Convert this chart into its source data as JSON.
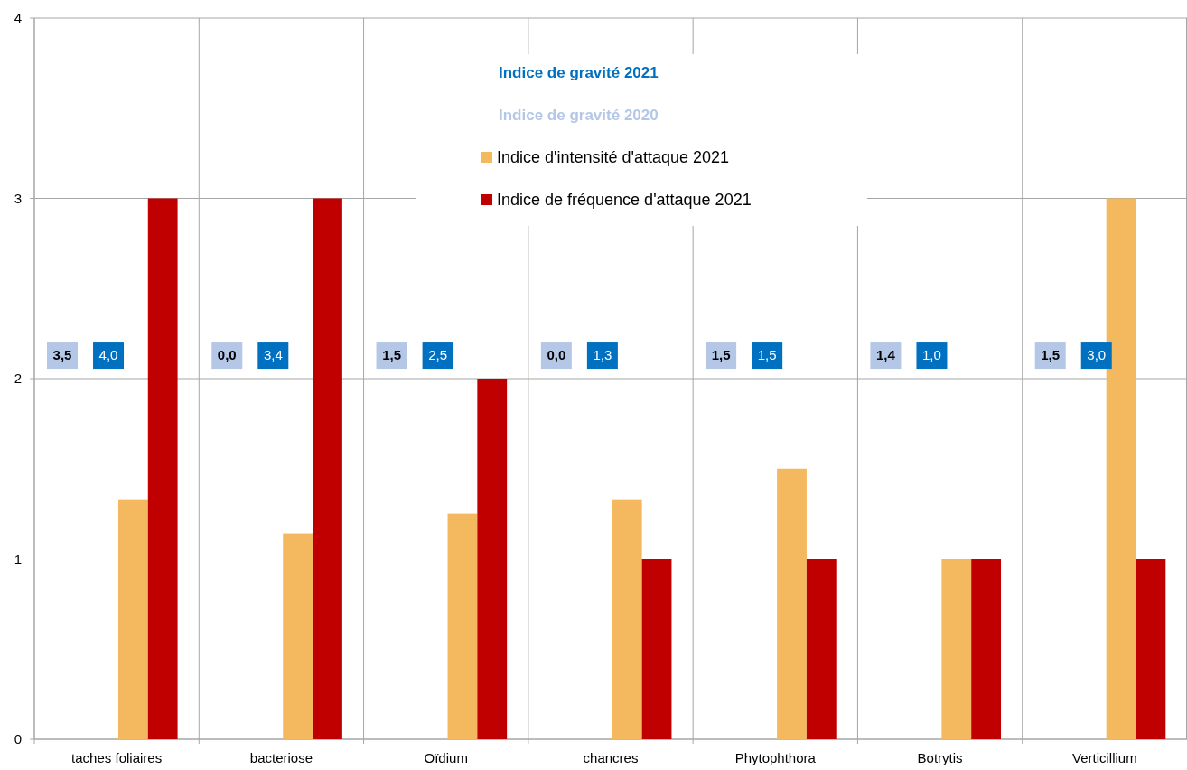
{
  "chart_data": {
    "type": "bar",
    "categories": [
      "taches foliaires",
      "bacteriose",
      "Oïdium",
      "chancres",
      "Phytophthora",
      "Botrytis",
      "Verticillium"
    ],
    "series": [
      {
        "name": "Indice d'intensité d'attaque 2021",
        "color": "#f4b85e",
        "values": [
          1.33,
          1.14,
          1.25,
          1.33,
          1.5,
          1.0,
          3.0
        ]
      },
      {
        "name": "Indice de fréquence d'attaque 2021",
        "color": "#c00000",
        "values": [
          3,
          3,
          2,
          1,
          1,
          1,
          1
        ]
      }
    ],
    "annotations": [
      "Indice de gravité 2021",
      "Indice de gravité 2020",
      "3,5",
      "4,0",
      "0,0",
      "3,4",
      "1,5",
      "2,5",
      "0,0",
      "1,3",
      "1,5",
      "1,5",
      "1,4",
      "1,0",
      "1,5",
      "3,0"
    ],
    "ylim": [
      0,
      4
    ],
    "yticks": [
      0,
      1,
      2,
      3,
      4
    ],
    "grid": true,
    "legend": "top"
  }
}
